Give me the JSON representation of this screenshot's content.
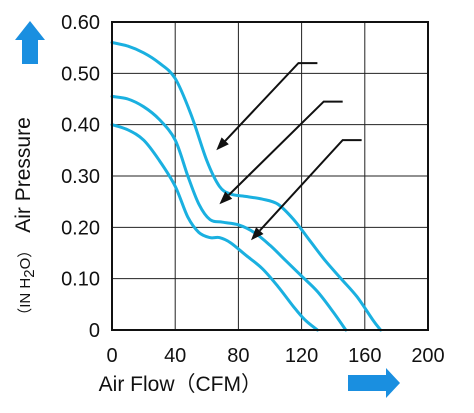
{
  "chart_data": {
    "type": "line",
    "xlabel": "Air Flow（CFM）",
    "ylabel": "Air Pressure",
    "ylabel_unit_prefix": "（IN H",
    "ylabel_unit_sub": "2",
    "ylabel_unit_suffix": "O）",
    "xlim": [
      0,
      200
    ],
    "ylim": [
      0,
      0.6
    ],
    "x_ticks": [
      "0",
      "40",
      "80",
      "120",
      "160",
      "200"
    ],
    "y_ticks": [
      "0",
      "0.10",
      "0.20",
      "0.30",
      "0.40",
      "0.50",
      "0.60"
    ],
    "grid": true,
    "line_color": "#1ab0e0",
    "arrow_color": "#1a8fe0",
    "series": [
      {
        "x": [
          0,
          10,
          20,
          30,
          40,
          48,
          55,
          62,
          68,
          75,
          85,
          95,
          105,
          115,
          122,
          130
        ],
        "y": [
          0.4,
          0.39,
          0.37,
          0.33,
          0.28,
          0.22,
          0.19,
          0.18,
          0.18,
          0.17,
          0.145,
          0.12,
          0.085,
          0.045,
          0.02,
          0.0
        ]
      },
      {
        "x": [
          0,
          10,
          20,
          30,
          40,
          48,
          55,
          62,
          70,
          80,
          90,
          100,
          110,
          120,
          130,
          140,
          148
        ],
        "y": [
          0.455,
          0.45,
          0.435,
          0.41,
          0.37,
          0.3,
          0.245,
          0.215,
          0.21,
          0.205,
          0.19,
          0.165,
          0.135,
          0.105,
          0.075,
          0.035,
          0.0
        ]
      },
      {
        "x": [
          0,
          10,
          20,
          30,
          40,
          50,
          60,
          68,
          75,
          85,
          95,
          105,
          115,
          125,
          135,
          145,
          155,
          165,
          170
        ],
        "y": [
          0.56,
          0.553,
          0.54,
          0.52,
          0.49,
          0.42,
          0.33,
          0.28,
          0.265,
          0.26,
          0.255,
          0.245,
          0.215,
          0.175,
          0.135,
          0.1,
          0.065,
          0.02,
          0.0
        ]
      }
    ],
    "arrows": [
      {
        "tail": [
          130,
          0.52
        ],
        "via": [
          118,
          0.52
        ],
        "head": [
          66,
          0.35
        ]
      },
      {
        "tail": [
          146,
          0.445
        ],
        "via": [
          134,
          0.445
        ],
        "head": [
          68,
          0.245
        ]
      },
      {
        "tail": [
          158,
          0.37
        ],
        "via": [
          146,
          0.37
        ],
        "head": [
          88,
          0.175
        ]
      }
    ]
  }
}
